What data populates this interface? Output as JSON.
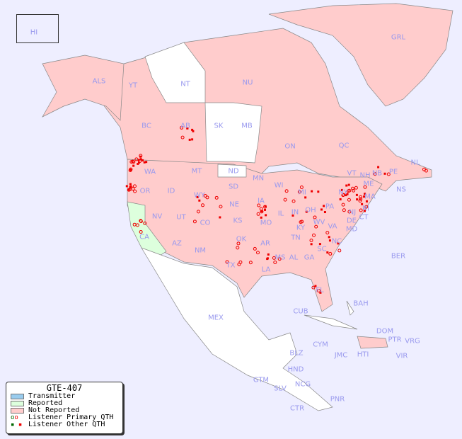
{
  "legend": {
    "title": "GTE-407",
    "items": [
      {
        "label": "Transmitter",
        "color": "#99ccee"
      },
      {
        "label": "Reported",
        "color": "#ddffdd"
      },
      {
        "label": "Not Reported",
        "color": "#ffcccc"
      },
      {
        "label": "Listener Primary QTH",
        "color": "#ee0000"
      },
      {
        "label": "Listener Other QTH",
        "color": "#ee0000"
      }
    ]
  },
  "colors": {
    "background": "#eeeeff",
    "not_reported": "#ffcccc",
    "reported": "#ddffdd",
    "unlisted": "#ffffff",
    "label": "#9999ee",
    "marker": "#ee0000"
  },
  "regions": [
    "HI",
    "ALS",
    "YT",
    "NT",
    "NU",
    "GRL",
    "BC",
    "AB",
    "SK",
    "MB",
    "ON",
    "QC",
    "NL",
    "NB",
    "NS",
    "PE",
    "WA",
    "OR",
    "CA",
    "ID",
    "NV",
    "MT",
    "WY",
    "UT",
    "AZ",
    "CO",
    "NM",
    "ND",
    "SD",
    "NE",
    "KS",
    "OK",
    "TX",
    "MN",
    "IA",
    "MO",
    "AR",
    "LA",
    "WI",
    "IL",
    "MS",
    "MI",
    "IN",
    "KY",
    "TN",
    "AL",
    "GA",
    "FL",
    "OH",
    "WV",
    "VA",
    "NC",
    "SC",
    "PA",
    "NY",
    "VT",
    "NH",
    "MA",
    "CT",
    "RI",
    "NJ",
    "DE",
    "MD",
    "ME",
    "BER",
    "BAH",
    "CUB",
    "MEX",
    "CYM",
    "JMC",
    "HTI",
    "DOM",
    "PTR",
    "VRG",
    "VIR",
    "BLZ",
    "HND",
    "GTM",
    "SLV",
    "NCG",
    "CTR",
    "PNR"
  ]
}
